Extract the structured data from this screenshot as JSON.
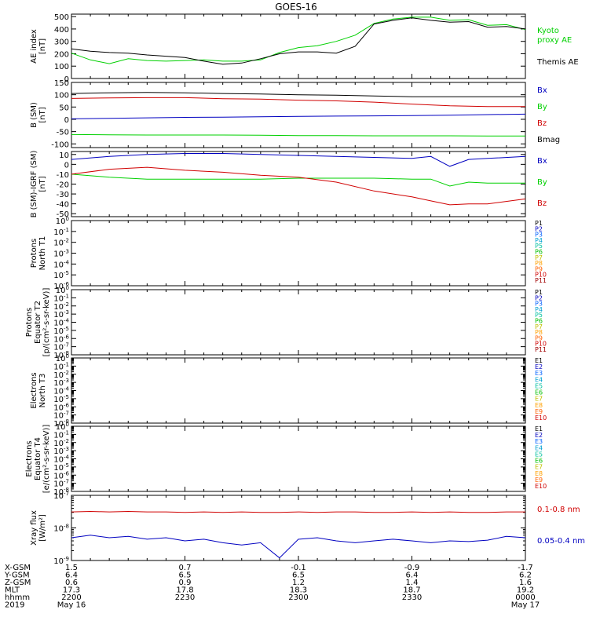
{
  "title": "GOES-16",
  "colors": {
    "black": "#000000",
    "green": "#00d000",
    "red": "#d00000",
    "blue": "#0000c0",
    "p": [
      "#000000",
      "#8000a0",
      "#0000c0",
      "#0060ff",
      "#00a0d0",
      "#00c0a0",
      "#00c000",
      "#c0c000",
      "#ffa000",
      "#ff6000",
      "#d00000",
      "#a00000"
    ]
  },
  "chart_data": [
    {
      "type": "line",
      "panel": "ae",
      "ylabel": [
        "AE index",
        "[nT]"
      ],
      "ylim": [
        0,
        520
      ],
      "yticks": [
        "0",
        "100",
        "200",
        "300",
        "400",
        "500"
      ],
      "ytick_values": [
        0,
        100,
        200,
        300,
        400,
        500
      ],
      "x_minutes": [
        0,
        5,
        10,
        15,
        20,
        25,
        30,
        35,
        40,
        45,
        50,
        55,
        60,
        65,
        70,
        75,
        80,
        85,
        90,
        95,
        100,
        105,
        110,
        115,
        120
      ],
      "series": [
        {
          "name": "Kyoto proxy AE",
          "color_key": "green",
          "values": [
            205,
            150,
            120,
            160,
            145,
            140,
            145,
            150,
            140,
            140,
            150,
            210,
            250,
            265,
            300,
            350,
            445,
            480,
            495,
            495,
            470,
            475,
            430,
            435,
            395
          ]
        },
        {
          "name": "Themis AE",
          "color_key": "black",
          "values": [
            240,
            220,
            210,
            205,
            190,
            180,
            170,
            140,
            115,
            125,
            160,
            200,
            215,
            215,
            205,
            260,
            440,
            470,
            490,
            470,
            455,
            460,
            415,
            420,
            400
          ]
        }
      ],
      "legend": [
        "Kyoto",
        "proxy AE",
        "Themis AE"
      ]
    },
    {
      "type": "line",
      "panel": "bsm",
      "ylabel": [
        "B (SM)",
        "[nT]"
      ],
      "ylim": [
        -115,
        150
      ],
      "yticks": [
        "150",
        "100",
        "50",
        "0",
        "-50",
        "-100"
      ],
      "ytick_values": [
        150,
        100,
        50,
        0,
        -50,
        -100
      ],
      "x_minutes": [
        0,
        10,
        20,
        30,
        40,
        50,
        60,
        70,
        80,
        90,
        100,
        110,
        120
      ],
      "series": [
        {
          "name": "Bmag",
          "color_key": "black",
          "values": [
            105,
            108,
            109,
            108,
            105,
            103,
            100,
            98,
            95,
            92,
            92,
            92,
            92
          ]
        },
        {
          "name": "By",
          "color_key": "green",
          "values": [
            -62,
            -63,
            -64,
            -64,
            -64,
            -65,
            -66,
            -66,
            -67,
            -67,
            -67,
            -68,
            -68
          ]
        },
        {
          "name": "Bz",
          "color_key": "red",
          "values": [
            85,
            87,
            88,
            88,
            84,
            82,
            78,
            75,
            70,
            62,
            55,
            52,
            52
          ]
        },
        {
          "name": "Bx",
          "color_key": "blue",
          "values": [
            2,
            4,
            6,
            8,
            9,
            10,
            12,
            13,
            14,
            15,
            17,
            19,
            21
          ]
        }
      ],
      "legend": [
        "Bx",
        "By",
        "Bz",
        "Bmag"
      ]
    },
    {
      "type": "line",
      "panel": "igrf",
      "ylabel": [
        "B (SM)-IGRF (SM)",
        "[nT]"
      ],
      "ylim": [
        -53,
        13
      ],
      "yticks": [
        "10",
        "0",
        "-10",
        "-20",
        "-30",
        "-40",
        "-50"
      ],
      "ytick_values": [
        10,
        0,
        -10,
        -20,
        -30,
        -40,
        -50
      ],
      "x_minutes": [
        0,
        10,
        20,
        30,
        40,
        50,
        60,
        70,
        80,
        90,
        95,
        100,
        105,
        110,
        120
      ],
      "series": [
        {
          "name": "Bx",
          "color_key": "blue",
          "values": [
            5,
            8,
            10,
            11,
            11,
            10,
            9,
            8,
            7,
            6,
            8,
            -2,
            5,
            6,
            8
          ]
        },
        {
          "name": "By",
          "color_key": "green",
          "values": [
            -10,
            -13,
            -15,
            -15,
            -15,
            -15,
            -14,
            -14,
            -14,
            -15,
            -15,
            -22,
            -18,
            -19,
            -19
          ]
        },
        {
          "name": "Bz",
          "color_key": "red",
          "values": [
            -10,
            -5,
            -3,
            -6,
            -8,
            -11,
            -13,
            -18,
            -27,
            -33,
            -37,
            -41,
            -40,
            -40,
            -35
          ]
        }
      ],
      "legend": [
        "Bx",
        "By",
        "Bz"
      ]
    },
    {
      "type": "line",
      "panel": "protons-t1",
      "ylabel": [
        "Protons",
        "North T1"
      ],
      "ylim": [
        -6,
        0
      ],
      "yticks": [
        "10^0",
        "10^-1",
        "10^-2",
        "10^-3",
        "10^-4",
        "10^-5",
        "10^-6"
      ],
      "series": [],
      "legend": [
        "P1",
        "P2",
        "P3",
        "P4",
        "P5",
        "P6",
        "P7",
        "P8",
        "P9",
        "P10",
        "P11"
      ]
    },
    {
      "type": "line",
      "panel": "protons-t2",
      "ylabel": [
        "Protons",
        "Equator T2",
        "[p/(cm²-s-sr-keV)]"
      ],
      "ylim": [
        -8,
        0
      ],
      "yticks": [
        "10^0",
        "10^-1",
        "10^-2",
        "10^-3",
        "10^-4",
        "10^-5",
        "10^-6",
        "10^-7",
        "10^-8"
      ],
      "series": [],
      "legend": [
        "P1",
        "P2",
        "P3",
        "P4",
        "P5",
        "P6",
        "P7",
        "P8",
        "P9",
        "P10",
        "P11"
      ]
    },
    {
      "type": "line",
      "panel": "electrons-t3",
      "ylabel": [
        "Electrons",
        "North T3"
      ],
      "ylim": [
        -8,
        0
      ],
      "yticks": [
        "10^0",
        "10^-1",
        "10^-2",
        "10^-3",
        "10^-4",
        "10^-5",
        "10^-6",
        "10^-7",
        "10^-8"
      ],
      "series": [],
      "legend": [
        "E1",
        "E2",
        "E3",
        "E4",
        "E5",
        "E6",
        "E7",
        "E8",
        "E9",
        "E10"
      ]
    },
    {
      "type": "line",
      "panel": "electrons-t4",
      "ylabel": [
        "Electrons",
        "Equator T4",
        "[e/(cm²-s-sr-keV)]"
      ],
      "ylim": [
        -8,
        0
      ],
      "yticks": [
        "10^0",
        "10^-1",
        "10^-2",
        "10^-3",
        "10^-4",
        "10^-5",
        "10^-6",
        "10^-7",
        "10^-8"
      ],
      "series": [],
      "legend": [
        "E1",
        "E2",
        "E3",
        "E4",
        "E5",
        "E6",
        "E7",
        "E8",
        "E9",
        "E10"
      ]
    },
    {
      "type": "line",
      "panel": "xray",
      "ylabel": [
        "Xray flux",
        "[W/m²]"
      ],
      "ylim": [
        -9,
        -7
      ],
      "log_scale": true,
      "yticks": [
        "10^-7",
        "10^-8",
        "10^-9"
      ],
      "x_minutes": [
        0,
        5,
        10,
        15,
        20,
        25,
        30,
        35,
        40,
        45,
        50,
        55,
        60,
        65,
        70,
        75,
        80,
        85,
        90,
        95,
        100,
        105,
        110,
        115,
        120
      ],
      "series": [
        {
          "name": "0.1-0.8 nm",
          "color_key": "red",
          "values": [
            3.1e-08,
            3.2e-08,
            3.1e-08,
            3.2e-08,
            3.1e-08,
            3.1e-08,
            3e-08,
            3.1e-08,
            3e-08,
            3.1e-08,
            3e-08,
            3e-08,
            3.1e-08,
            3e-08,
            3.1e-08,
            3.1e-08,
            3e-08,
            3e-08,
            3.1e-08,
            3e-08,
            3.1e-08,
            3e-08,
            3e-08,
            3.1e-08,
            3.1e-08
          ]
        },
        {
          "name": "0.05-0.4 nm",
          "color_key": "blue",
          "values": [
            5e-09,
            6e-09,
            5e-09,
            5.5e-09,
            4.5e-09,
            5e-09,
            4e-09,
            4.5e-09,
            3.5e-09,
            3e-09,
            3.5e-09,
            1.2e-09,
            4.5e-09,
            5e-09,
            4e-09,
            3.5e-09,
            4e-09,
            4.5e-09,
            4e-09,
            3.5e-09,
            4e-09,
            3.8e-09,
            4.2e-09,
            5.5e-09,
            5e-09
          ]
        }
      ],
      "legend": [
        "0.1-0.8 nm",
        "0.05-0.4 nm"
      ]
    }
  ],
  "xaxis": {
    "row_labels": [
      "X-GSM",
      "Y-GSM",
      "Z-GSM",
      "MLT",
      "hhmm",
      "2019"
    ],
    "ticks": [
      {
        "minute": 0,
        "values": [
          "1.5",
          "6.4",
          "0.6",
          "17.3",
          "2200",
          "May 16"
        ]
      },
      {
        "minute": 30,
        "values": [
          "0.7",
          "6.5",
          "0.9",
          "17.8",
          "2230",
          ""
        ]
      },
      {
        "minute": 60,
        "values": [
          "-0.1",
          "6.5",
          "1.2",
          "18.3",
          "2300",
          ""
        ]
      },
      {
        "minute": 90,
        "values": [
          "-0.9",
          "6.4",
          "1.4",
          "18.7",
          "2330",
          ""
        ]
      },
      {
        "minute": 120,
        "values": [
          "-1.7",
          "6.2",
          "1.6",
          "19.2",
          "0000",
          "May 17"
        ]
      }
    ]
  }
}
